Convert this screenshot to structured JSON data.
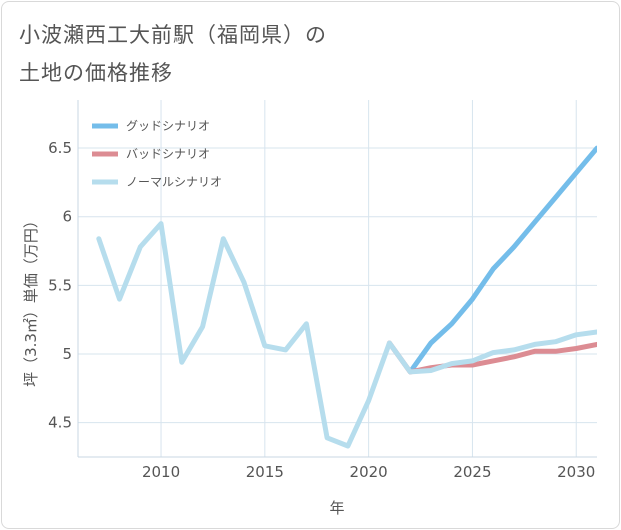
{
  "chart_data": {
    "type": "line",
    "title_lines": [
      "小波瀬西工大前駅（福岡県）の",
      "土地の価格推移"
    ],
    "xlabel": "年",
    "ylabel": "坪（3.3㎡）単価（万円）",
    "xlim": [
      2006,
      2031
    ],
    "ylim": [
      4.25,
      6.85
    ],
    "x_ticks": [
      2010,
      2015,
      2020,
      2025,
      2030
    ],
    "y_ticks": [
      4.5,
      5,
      5.5,
      6,
      6.5
    ],
    "x_tick_labels": [
      "2010",
      "2015",
      "2020",
      "2025",
      "2030"
    ],
    "y_tick_labels": [
      "4.5",
      "5",
      "5.5",
      "6",
      "6.5"
    ],
    "grid": true,
    "legend_position": "top-left",
    "series": [
      {
        "name": "グッドシナリオ",
        "color": "#74bdea",
        "x": [
          2022,
          2023,
          2024,
          2025,
          2026,
          2027,
          2028,
          2029,
          2030,
          2031
        ],
        "values": [
          4.87,
          5.08,
          5.22,
          5.4,
          5.62,
          5.78,
          5.96,
          6.14,
          6.32,
          6.5
        ]
      },
      {
        "name": "バッドシナリオ",
        "color": "#dc8c93",
        "x": [
          2021,
          2022,
          2023,
          2024,
          2025,
          2026,
          2027,
          2028,
          2029,
          2030,
          2031
        ],
        "values": [
          5.08,
          4.87,
          4.9,
          4.92,
          4.92,
          4.95,
          4.98,
          5.02,
          5.02,
          5.04,
          5.07
        ]
      },
      {
        "name": "ノーマルシナリオ",
        "color": "#b6dded",
        "x": [
          2007,
          2008,
          2009,
          2010,
          2011,
          2012,
          2013,
          2014,
          2015,
          2016,
          2017,
          2018,
          2019,
          2020,
          2021,
          2022,
          2023,
          2024,
          2025,
          2026,
          2027,
          2028,
          2029,
          2030,
          2031
        ],
        "values": [
          5.84,
          5.4,
          5.78,
          5.95,
          4.94,
          5.2,
          5.84,
          5.52,
          5.06,
          5.03,
          5.22,
          4.39,
          4.33,
          4.66,
          5.08,
          4.87,
          4.88,
          4.93,
          4.95,
          5.01,
          5.03,
          5.07,
          5.09,
          5.14,
          5.16
        ]
      }
    ]
  }
}
